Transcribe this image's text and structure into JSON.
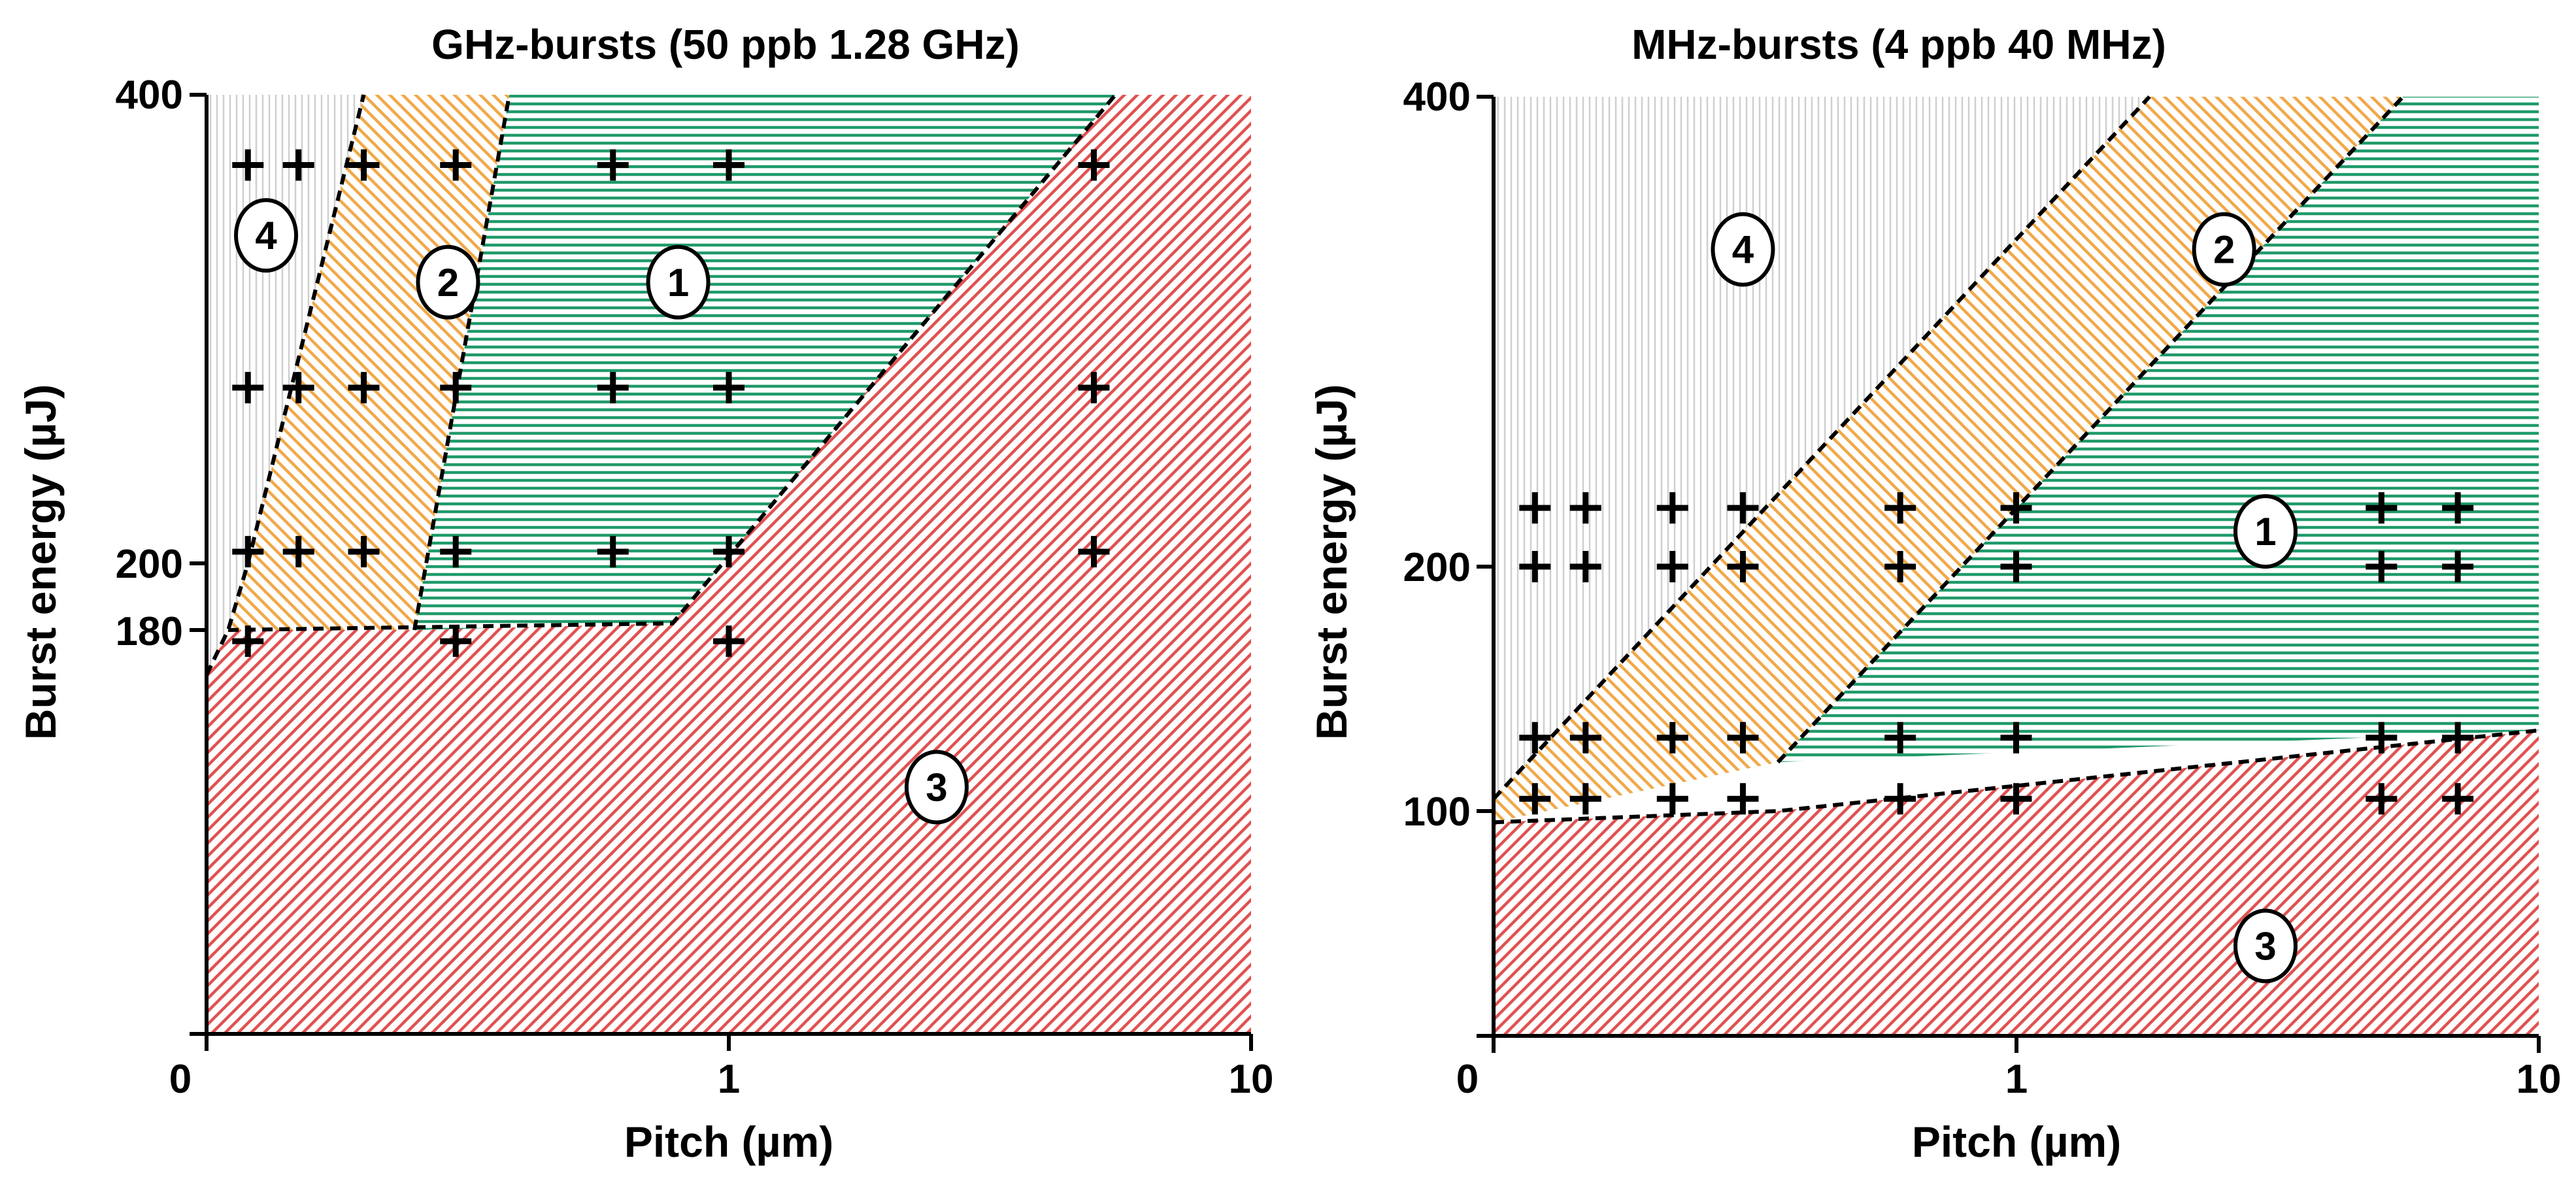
{
  "chart_data": [
    {
      "type": "region-map",
      "title": "GHz-bursts (50 ppb 1.28 GHz)",
      "xlabel": "Pitch (µm)",
      "ylabel": "Burst energy (µJ)",
      "x_ticks": [
        "0",
        "1",
        "10"
      ],
      "y_ticks": [
        "400",
        "200",
        "180"
      ],
      "xlim": [
        0.1,
        10
      ],
      "ylim": [
        0,
        400
      ],
      "regions": [
        {
          "id": "4",
          "label": "4",
          "pattern": "vertical",
          "color": "#cfcfcf",
          "polygon": [
            [
              0.1,
              0
            ],
            [
              0.1,
              400
            ],
            [
              0.2,
              400
            ],
            [
              0.12,
              200
            ],
            [
              0.11,
              180
            ],
            [
              0.1,
              160
            ]
          ],
          "label_at": [
            0.13,
            340
          ]
        },
        {
          "id": "2",
          "label": "2",
          "pattern": "diag-right",
          "color": "#f0a848",
          "polygon": [
            [
              0.11,
              180
            ],
            [
              0.12,
              200
            ],
            [
              0.2,
              400
            ],
            [
              0.38,
              400
            ],
            [
              0.25,
              180
            ]
          ],
          "label_at": [
            0.29,
            320
          ]
        },
        {
          "id": "1",
          "label": "1",
          "pattern": "horizontal",
          "color": "#1f9a6a",
          "polygon": [
            [
              0.25,
              180
            ],
            [
              0.38,
              400
            ],
            [
              5.5,
              400
            ],
            [
              0.78,
              182
            ]
          ],
          "label_at": [
            0.8,
            320
          ]
        },
        {
          "id": "3",
          "label": "3",
          "pattern": "diag-left",
          "color": "#e05050",
          "polygon": [
            [
              0.1,
              0
            ],
            [
              0.1,
              160
            ],
            [
              0.11,
              180
            ],
            [
              0.25,
              180
            ],
            [
              0.78,
              182
            ],
            [
              5.5,
              400
            ],
            [
              10,
              400
            ],
            [
              10,
              0
            ]
          ],
          "label_at": [
            2.5,
            110
          ]
        }
      ],
      "boundaries": [
        [
          [
            0.1,
            160
          ],
          [
            0.11,
            180
          ],
          [
            0.12,
            200
          ],
          [
            0.2,
            400
          ]
        ],
        [
          [
            0.25,
            180
          ],
          [
            0.38,
            400
          ]
        ],
        [
          [
            0.11,
            180
          ],
          [
            0.78,
            182
          ],
          [
            5.5,
            400
          ]
        ]
      ],
      "points": [
        {
          "x": 0.12,
          "y": 370
        },
        {
          "x": 0.15,
          "y": 370
        },
        {
          "x": 0.2,
          "y": 370
        },
        {
          "x": 0.3,
          "y": 370
        },
        {
          "x": 0.6,
          "y": 370
        },
        {
          "x": 1.0,
          "y": 370
        },
        {
          "x": 5.0,
          "y": 370
        },
        {
          "x": 0.12,
          "y": 275
        },
        {
          "x": 0.15,
          "y": 275
        },
        {
          "x": 0.2,
          "y": 275
        },
        {
          "x": 0.3,
          "y": 275
        },
        {
          "x": 0.6,
          "y": 275
        },
        {
          "x": 1.0,
          "y": 275
        },
        {
          "x": 5.0,
          "y": 275
        },
        {
          "x": 0.12,
          "y": 205
        },
        {
          "x": 0.15,
          "y": 205
        },
        {
          "x": 0.2,
          "y": 205
        },
        {
          "x": 0.3,
          "y": 205
        },
        {
          "x": 0.6,
          "y": 205
        },
        {
          "x": 1.0,
          "y": 205
        },
        {
          "x": 5.0,
          "y": 205
        },
        {
          "x": 0.12,
          "y": 175
        },
        {
          "x": 0.3,
          "y": 175
        },
        {
          "x": 1.0,
          "y": 175
        }
      ]
    },
    {
      "type": "region-map",
      "title": "MHz-bursts (4 ppb 40 MHz)",
      "xlabel": "Pitch (µm)",
      "ylabel": "Burst energy (µJ)",
      "x_ticks": [
        "0",
        "1",
        "10"
      ],
      "y_ticks": [
        "400",
        "200",
        "100"
      ],
      "xlim": [
        0.1,
        10
      ],
      "ylim": [
        0,
        400
      ],
      "regions": [
        {
          "id": "4",
          "label": "4",
          "pattern": "vertical",
          "color": "#cfcfcf",
          "polygon": [
            [
              0.1,
              105
            ],
            [
              0.1,
              400
            ],
            [
              1.8,
              400
            ]
          ],
          "label_at": [
            0.3,
            335
          ]
        },
        {
          "id": "2",
          "label": "2",
          "pattern": "diag-right",
          "color": "#f0a848",
          "polygon": [
            [
              0.1,
              105
            ],
            [
              1.8,
              400
            ],
            [
              5.5,
              400
            ],
            [
              0.35,
              120
            ],
            [
              0.1,
              95
            ]
          ],
          "label_at": [
            2.5,
            335
          ]
        },
        {
          "id": "1",
          "label": "1",
          "pattern": "horizontal",
          "color": "#1f9a6a",
          "polygon": [
            [
              0.35,
              120
            ],
            [
              5.5,
              400
            ],
            [
              10,
              400
            ],
            [
              10,
              133
            ]
          ],
          "label_at": [
            3.0,
            215
          ]
        },
        {
          "id": "3",
          "label": "3",
          "pattern": "diag-left",
          "color": "#e05050",
          "polygon": [
            [
              0.1,
              0
            ],
            [
              0.1,
              95
            ],
            [
              0.35,
              100
            ],
            [
              10,
              133
            ],
            [
              10,
              0
            ]
          ],
          "label_at": [
            3.0,
            40
          ]
        }
      ],
      "boundaries": [
        [
          [
            0.1,
            105
          ],
          [
            1.8,
            400
          ]
        ],
        [
          [
            0.35,
            120
          ],
          [
            5.5,
            400
          ]
        ],
        [
          [
            0.1,
            95
          ],
          [
            0.35,
            100
          ],
          [
            10,
            133
          ]
        ]
      ],
      "points": [
        {
          "x": 0.12,
          "y": 225
        },
        {
          "x": 0.15,
          "y": 225
        },
        {
          "x": 0.22,
          "y": 225
        },
        {
          "x": 0.3,
          "y": 225
        },
        {
          "x": 0.6,
          "y": 225
        },
        {
          "x": 1.0,
          "y": 225
        },
        {
          "x": 5.0,
          "y": 225
        },
        {
          "x": 7.0,
          "y": 225
        },
        {
          "x": 0.12,
          "y": 200
        },
        {
          "x": 0.15,
          "y": 200
        },
        {
          "x": 0.22,
          "y": 200
        },
        {
          "x": 0.3,
          "y": 200
        },
        {
          "x": 0.6,
          "y": 200
        },
        {
          "x": 1.0,
          "y": 200
        },
        {
          "x": 5.0,
          "y": 200
        },
        {
          "x": 7.0,
          "y": 200
        },
        {
          "x": 0.12,
          "y": 130
        },
        {
          "x": 0.15,
          "y": 130
        },
        {
          "x": 0.22,
          "y": 130
        },
        {
          "x": 0.3,
          "y": 130
        },
        {
          "x": 0.6,
          "y": 130
        },
        {
          "x": 1.0,
          "y": 130
        },
        {
          "x": 5.0,
          "y": 130
        },
        {
          "x": 7.0,
          "y": 130
        },
        {
          "x": 0.12,
          "y": 105
        },
        {
          "x": 0.15,
          "y": 105
        },
        {
          "x": 0.22,
          "y": 105
        },
        {
          "x": 0.3,
          "y": 105
        },
        {
          "x": 0.6,
          "y": 105
        },
        {
          "x": 1.0,
          "y": 105
        },
        {
          "x": 5.0,
          "y": 105
        },
        {
          "x": 7.0,
          "y": 105
        }
      ]
    }
  ]
}
